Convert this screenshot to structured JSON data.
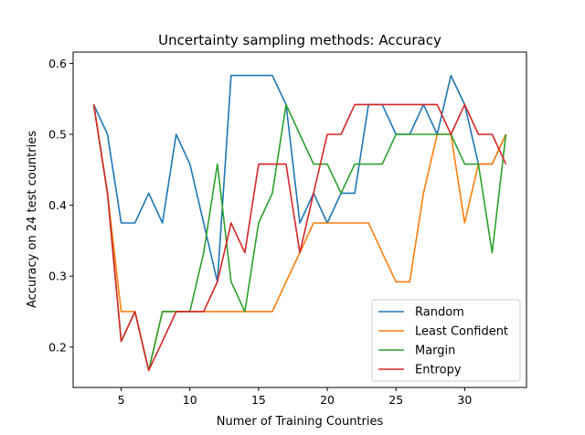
{
  "chart_data": {
    "type": "line",
    "title": "Uncertainty sampling methods: Accuracy",
    "xlabel": "Numer of Training Countries",
    "ylabel": "Accuracy on 24 test countries",
    "xlim": [
      1.5,
      34.5
    ],
    "ylim": [
      0.143,
      0.616
    ],
    "xticks": [
      5,
      10,
      15,
      20,
      25,
      30
    ],
    "yticks": [
      0.2,
      0.3,
      0.4,
      0.5,
      0.6
    ],
    "ytick_labels": [
      "0.2",
      "0.3",
      "0.4",
      "0.5",
      "0.6"
    ],
    "grid": false,
    "legend_position": "lower-right",
    "x": [
      3,
      4,
      5,
      6,
      7,
      8,
      9,
      10,
      11,
      12,
      13,
      14,
      15,
      16,
      17,
      18,
      19,
      20,
      21,
      22,
      23,
      24,
      25,
      26,
      27,
      28,
      29,
      30,
      31,
      32,
      33
    ],
    "series": [
      {
        "name": "Random",
        "color": "#1f77b4",
        "values": [
          0.542,
          0.5,
          0.375,
          0.375,
          0.417,
          0.375,
          0.5,
          0.458,
          0.375,
          0.292,
          0.583,
          0.583,
          0.583,
          0.583,
          0.542,
          0.375,
          0.417,
          0.375,
          0.417,
          0.417,
          0.542,
          0.542,
          0.5,
          0.5,
          0.542,
          0.5,
          0.583,
          0.542,
          0.458,
          0.458,
          0.5
        ]
      },
      {
        "name": "Least Confident",
        "color": "#ff7f0e",
        "values": [
          0.542,
          0.417,
          0.25,
          0.25,
          0.167,
          0.25,
          0.25,
          0.25,
          0.25,
          0.25,
          0.25,
          0.25,
          0.25,
          0.25,
          0.292,
          0.333,
          0.375,
          0.375,
          0.375,
          0.375,
          0.375,
          0.333,
          0.292,
          0.292,
          0.417,
          0.5,
          0.5,
          0.375,
          0.458,
          0.458,
          0.5
        ]
      },
      {
        "name": "Margin",
        "color": "#2ca02c",
        "values": [
          0.542,
          0.417,
          0.208,
          0.25,
          0.167,
          0.25,
          0.25,
          0.25,
          0.333,
          0.458,
          0.292,
          0.25,
          0.375,
          0.417,
          0.542,
          0.5,
          0.458,
          0.458,
          0.417,
          0.458,
          0.458,
          0.458,
          0.5,
          0.5,
          0.5,
          0.5,
          0.5,
          0.458,
          0.458,
          0.333,
          0.5
        ]
      },
      {
        "name": "Entropy",
        "color": "#d62728",
        "values": [
          0.542,
          0.417,
          0.208,
          0.25,
          0.167,
          0.208,
          0.25,
          0.25,
          0.25,
          0.292,
          0.375,
          0.333,
          0.458,
          0.458,
          0.458,
          0.333,
          0.417,
          0.5,
          0.5,
          0.542,
          0.542,
          0.542,
          0.542,
          0.542,
          0.542,
          0.542,
          0.5,
          0.542,
          0.5,
          0.5,
          0.458
        ]
      }
    ]
  }
}
